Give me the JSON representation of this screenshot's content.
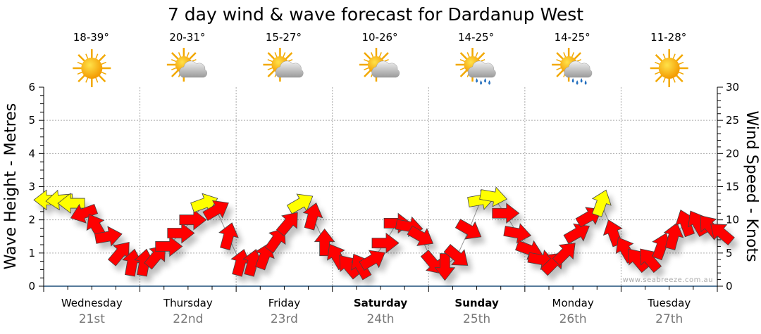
{
  "chart_data": {
    "type": "line",
    "title": "7 day wind & wave forecast for Dardanup West",
    "ylabel_left": "Wave Height - Metres",
    "ylabel_right": "Wind Speed - Knots",
    "ylim_left": [
      0,
      6
    ],
    "ylim_right": [
      0,
      30
    ],
    "yticks_left": [
      "0",
      "1",
      "2",
      "3",
      "4",
      "5",
      "6"
    ],
    "yticks_right": [
      "0",
      "5",
      "10",
      "15",
      "20",
      "25",
      "30"
    ],
    "grid": true,
    "interval_hours": 3,
    "days": [
      {
        "name": "Wednesday",
        "date": "21st",
        "bold": false,
        "temp": "18-39°",
        "weather": "sunny"
      },
      {
        "name": "Thursday",
        "date": "22nd",
        "bold": false,
        "temp": "20-31°",
        "weather": "partly-cloudy"
      },
      {
        "name": "Friday",
        "date": "23rd",
        "bold": false,
        "temp": "15-27°",
        "weather": "partly-cloudy"
      },
      {
        "name": "Saturday",
        "date": "24th",
        "bold": true,
        "temp": "10-26°",
        "weather": "partly-cloudy"
      },
      {
        "name": "Sunday",
        "date": "25th",
        "bold": true,
        "temp": "14-25°",
        "weather": "showers"
      },
      {
        "name": "Monday",
        "date": "26th",
        "bold": false,
        "temp": "14-25°",
        "weather": "showers"
      },
      {
        "name": "Tuesday",
        "date": "27th",
        "bold": false,
        "temp": "11-28°",
        "weather": "sunny"
      }
    ],
    "wind_series": {
      "name": "Wind",
      "speed_knots": [
        13,
        13,
        12.5,
        11,
        9,
        7.5,
        5,
        3.5,
        3.5,
        4.5,
        6,
        8,
        10,
        12.5,
        11.5,
        7.5,
        3.5,
        3.5,
        4.5,
        7,
        9.5,
        12.5,
        10.5,
        6.5,
        4.5,
        3,
        3,
        4,
        6.5,
        9.5,
        9,
        7.5,
        3.5,
        3,
        4.5,
        8.5,
        13,
        13.5,
        11,
        8,
        5.5,
        4,
        3.5,
        5,
        8,
        10.5,
        12.5,
        8,
        5.5,
        4,
        4,
        6,
        7.5,
        9.5,
        9.5,
        9,
        8
      ],
      "arrow_bearing_deg": [
        270,
        265,
        270,
        250,
        330,
        80,
        40,
        10,
        10,
        40,
        90,
        90,
        90,
        70,
        60,
        15,
        15,
        15,
        20,
        35,
        40,
        60,
        15,
        0,
        330,
        320,
        330,
        60,
        90,
        90,
        100,
        120,
        140,
        180,
        130,
        120,
        80,
        100,
        90,
        100,
        110,
        100,
        45,
        45,
        60,
        60,
        20,
        340,
        330,
        320,
        320,
        20,
        15,
        340,
        330,
        320,
        310
      ],
      "color_class": [
        "Y",
        "Y",
        "Y",
        "R",
        "R",
        "R",
        "R",
        "R",
        "R",
        "R",
        "R",
        "R",
        "R",
        "Y",
        "R",
        "R",
        "R",
        "R",
        "R",
        "R",
        "R",
        "Y",
        "R",
        "R",
        "R",
        "R",
        "R",
        "R",
        "R",
        "R",
        "R",
        "R",
        "R",
        "R",
        "R",
        "R",
        "Y",
        "Y",
        "R",
        "R",
        "R",
        "R",
        "R",
        "R",
        "R",
        "R",
        "Y",
        "R",
        "R",
        "R",
        "R",
        "R",
        "R",
        "R",
        "R",
        "R",
        "R"
      ]
    },
    "colors": {
      "strong": "#FFFF00",
      "normal": "#FF0000",
      "axis": "#1F4E79",
      "grid": "#aaaaaa"
    },
    "watermark": "www.seabreeze.com.au"
  }
}
